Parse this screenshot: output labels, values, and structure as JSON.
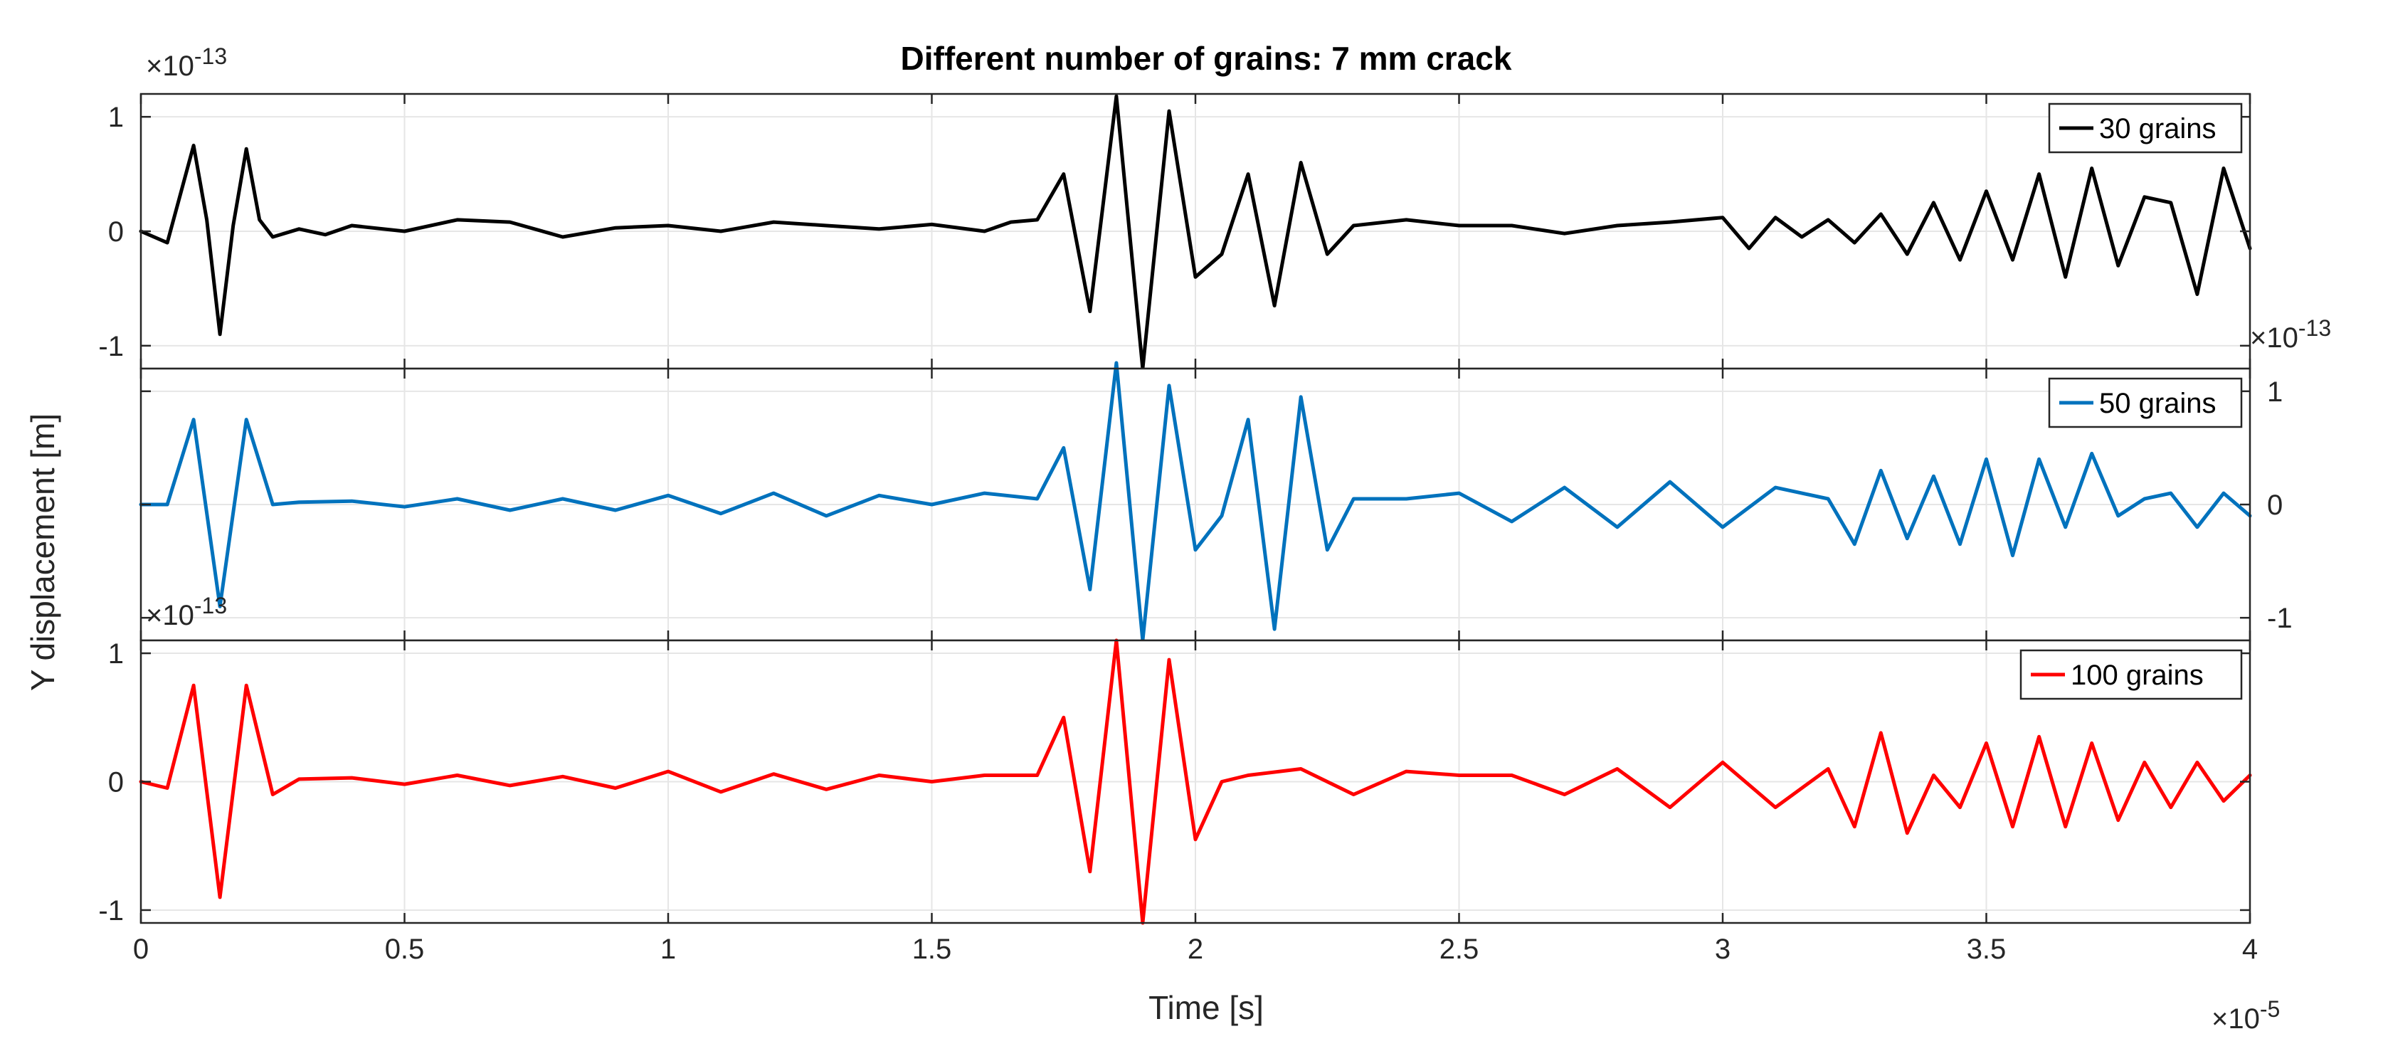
{
  "figure": {
    "title": "Different number of grains: 7 mm crack",
    "ylabel": "Y displacement [m]",
    "xlabel": "Time [s]",
    "x_exponent_prefix": "×10",
    "x_exponent": "-5",
    "y_exponent_prefix": "×10",
    "y_exponent": "-13"
  },
  "chart_data": [
    {
      "type": "line",
      "name": "30 grains",
      "legend": "30 grains",
      "color": "#000000",
      "xlim": [
        0,
        4
      ],
      "ylim": [
        -1.2,
        1.2
      ],
      "x_ticks": [
        0,
        0.5,
        1,
        1.5,
        2,
        2.5,
        3,
        3.5,
        4
      ],
      "x_tick_labels": [],
      "y_ticks": [
        -1,
        0,
        1
      ],
      "y_tick_labels": [
        "-1",
        "0",
        "1"
      ],
      "y_axis_side": "left",
      "grid": true,
      "x_units_scale": "x10^-5 s",
      "y_units_scale": "x10^-13 m",
      "x": [
        0,
        0.05,
        0.1,
        0.125,
        0.15,
        0.175,
        0.2,
        0.225,
        0.25,
        0.3,
        0.35,
        0.4,
        0.5,
        0.6,
        0.7,
        0.8,
        0.9,
        1.0,
        1.1,
        1.2,
        1.3,
        1.4,
        1.5,
        1.6,
        1.65,
        1.7,
        1.75,
        1.8,
        1.85,
        1.9,
        1.95,
        2.0,
        2.05,
        2.1,
        2.15,
        2.2,
        2.25,
        2.3,
        2.4,
        2.5,
        2.6,
        2.7,
        2.8,
        2.9,
        3.0,
        3.05,
        3.1,
        3.15,
        3.2,
        3.25,
        3.3,
        3.35,
        3.4,
        3.45,
        3.5,
        3.55,
        3.6,
        3.65,
        3.7,
        3.75,
        3.8,
        3.85,
        3.9,
        3.95,
        4.0
      ],
      "y": [
        0,
        -0.1,
        0.75,
        0.1,
        -0.9,
        0.05,
        0.72,
        0.1,
        -0.05,
        0.02,
        -0.03,
        0.05,
        0.0,
        0.1,
        0.08,
        -0.05,
        0.03,
        0.05,
        0.0,
        0.08,
        0.05,
        0.02,
        0.06,
        0.0,
        0.08,
        0.1,
        0.5,
        -0.7,
        1.18,
        -1.2,
        1.05,
        -0.4,
        -0.2,
        0.5,
        -0.65,
        0.6,
        -0.2,
        0.05,
        0.1,
        0.05,
        0.05,
        -0.02,
        0.05,
        0.08,
        0.12,
        -0.15,
        0.12,
        -0.05,
        0.1,
        -0.1,
        0.15,
        -0.2,
        0.25,
        -0.25,
        0.35,
        -0.25,
        0.5,
        -0.4,
        0.55,
        -0.3,
        0.3,
        0.25,
        -0.55,
        0.55,
        -0.15
      ]
    },
    {
      "type": "line",
      "name": "50 grains",
      "legend": "50 grains",
      "color": "#0072BD",
      "xlim": [
        0,
        4
      ],
      "ylim": [
        -1.2,
        1.2
      ],
      "x_ticks": [
        0,
        0.5,
        1,
        1.5,
        2,
        2.5,
        3,
        3.5,
        4
      ],
      "x_tick_labels": [],
      "y_ticks": [
        -1,
        0,
        1
      ],
      "y_tick_labels": [
        "-1",
        "0",
        "1"
      ],
      "y_axis_side": "right",
      "grid": true,
      "x_units_scale": "x10^-5 s",
      "y_units_scale": "x10^-13 m",
      "x": [
        0,
        0.05,
        0.1,
        0.15,
        0.2,
        0.25,
        0.3,
        0.4,
        0.5,
        0.6,
        0.7,
        0.8,
        0.9,
        1.0,
        1.1,
        1.2,
        1.3,
        1.4,
        1.5,
        1.6,
        1.7,
        1.75,
        1.8,
        1.85,
        1.9,
        1.95,
        2.0,
        2.05,
        2.1,
        2.15,
        2.2,
        2.25,
        2.3,
        2.4,
        2.5,
        2.6,
        2.7,
        2.8,
        2.9,
        3.0,
        3.1,
        3.2,
        3.25,
        3.3,
        3.35,
        3.4,
        3.45,
        3.5,
        3.55,
        3.6,
        3.65,
        3.7,
        3.75,
        3.8,
        3.85,
        3.9,
        3.95,
        4.0
      ],
      "y": [
        0,
        0.0,
        0.75,
        -0.9,
        0.75,
        0.0,
        0.02,
        0.03,
        -0.02,
        0.05,
        -0.05,
        0.05,
        -0.05,
        0.08,
        -0.08,
        0.1,
        -0.1,
        0.08,
        0.0,
        0.1,
        0.05,
        0.5,
        -0.75,
        1.25,
        -1.2,
        1.05,
        -0.4,
        -0.1,
        0.75,
        -1.1,
        0.95,
        -0.4,
        0.05,
        0.05,
        0.1,
        -0.15,
        0.15,
        -0.2,
        0.2,
        -0.2,
        0.15,
        0.05,
        -0.35,
        0.3,
        -0.3,
        0.25,
        -0.35,
        0.4,
        -0.45,
        0.4,
        -0.2,
        0.45,
        -0.1,
        0.05,
        0.1,
        -0.2,
        0.1,
        -0.1
      ]
    },
    {
      "type": "line",
      "name": "100 grains",
      "legend": "100 grains",
      "color": "#FF0000",
      "xlim": [
        0,
        4
      ],
      "ylim": [
        -1.1,
        1.1
      ],
      "x_ticks": [
        0,
        0.5,
        1,
        1.5,
        2,
        2.5,
        3,
        3.5,
        4
      ],
      "x_tick_labels": [
        "0",
        "0.5",
        "1",
        "1.5",
        "2",
        "2.5",
        "3",
        "3.5",
        "4"
      ],
      "y_ticks": [
        -1,
        0,
        1
      ],
      "y_tick_labels": [
        "-1",
        "0",
        "1"
      ],
      "y_axis_side": "left",
      "grid": true,
      "x_units_scale": "x10^-5 s",
      "y_units_scale": "x10^-13 m",
      "x": [
        0,
        0.05,
        0.1,
        0.15,
        0.2,
        0.25,
        0.3,
        0.4,
        0.5,
        0.6,
        0.7,
        0.8,
        0.9,
        1.0,
        1.1,
        1.2,
        1.3,
        1.4,
        1.5,
        1.6,
        1.7,
        1.75,
        1.8,
        1.85,
        1.9,
        1.95,
        2.0,
        2.05,
        2.1,
        2.2,
        2.3,
        2.4,
        2.5,
        2.6,
        2.7,
        2.8,
        2.9,
        3.0,
        3.1,
        3.2,
        3.25,
        3.3,
        3.35,
        3.4,
        3.45,
        3.5,
        3.55,
        3.6,
        3.65,
        3.7,
        3.75,
        3.8,
        3.85,
        3.9,
        3.95,
        4.0
      ],
      "y": [
        0,
        -0.05,
        0.75,
        -0.9,
        0.75,
        -0.1,
        0.02,
        0.03,
        -0.02,
        0.05,
        -0.03,
        0.04,
        -0.05,
        0.08,
        -0.08,
        0.06,
        -0.06,
        0.05,
        0.0,
        0.05,
        0.05,
        0.5,
        -0.7,
        1.1,
        -1.1,
        0.95,
        -0.45,
        0.0,
        0.05,
        0.1,
        -0.1,
        0.08,
        0.05,
        0.05,
        -0.1,
        0.1,
        -0.2,
        0.15,
        -0.2,
        0.1,
        -0.35,
        0.38,
        -0.4,
        0.05,
        -0.2,
        0.3,
        -0.35,
        0.35,
        -0.35,
        0.3,
        -0.3,
        0.15,
        -0.2,
        0.15,
        -0.15,
        0.05
      ]
    }
  ]
}
